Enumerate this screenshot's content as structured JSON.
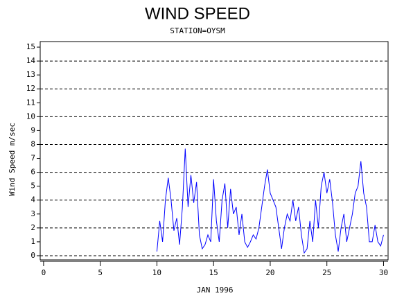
{
  "chart_data": {
    "type": "line",
    "title": "WIND SPEED",
    "subtitle": "STATION=OYSM",
    "y_label": "Wind Speed m/sec",
    "x_label": "JAN 1996",
    "x": [
      10,
      10.25,
      10.5,
      10.75,
      11,
      11.25,
      11.5,
      11.75,
      12,
      12.25,
      12.5,
      12.75,
      13,
      13.25,
      13.5,
      13.75,
      14,
      14.25,
      14.5,
      14.75,
      15,
      15.25,
      15.5,
      15.75,
      16,
      16.25,
      16.5,
      16.75,
      17,
      17.25,
      17.5,
      17.75,
      18,
      18.25,
      18.5,
      18.75,
      19,
      19.25,
      19.5,
      19.75,
      20,
      20.25,
      20.5,
      20.75,
      21,
      21.25,
      21.5,
      21.75,
      22,
      22.25,
      22.5,
      22.75,
      23,
      23.25,
      23.5,
      23.75,
      24,
      24.25,
      24.5,
      24.75,
      25,
      25.25,
      25.5,
      25.75,
      26,
      26.25,
      26.5,
      26.75,
      27,
      27.25,
      27.5,
      27.75,
      28,
      28.25,
      28.5,
      28.75,
      29,
      29.25,
      29.5,
      29.75,
      30
    ],
    "values": [
      0.3,
      2.5,
      1.0,
      4.0,
      5.6,
      4.0,
      1.8,
      2.7,
      0.8,
      3.5,
      7.7,
      3.5,
      5.8,
      3.8,
      5.3,
      1.5,
      0.5,
      0.8,
      1.5,
      1.0,
      5.5,
      2.5,
      1.0,
      4.0,
      5.2,
      2.0,
      4.8,
      3.0,
      3.5,
      1.5,
      3.0,
      1.0,
      0.6,
      1.0,
      1.5,
      1.2,
      2.0,
      3.5,
      5.0,
      6.2,
      4.5,
      4.0,
      3.5,
      2.0,
      0.5,
      2.0,
      3.0,
      2.5,
      4.0,
      2.5,
      3.5,
      1.5,
      0.2,
      0.5,
      2.5,
      1.0,
      4.0,
      2.0,
      5.0,
      6.0,
      4.5,
      5.5,
      3.8,
      1.5,
      0.3,
      2.0,
      3.0,
      1.0,
      2.0,
      3.0,
      4.5,
      5.0,
      6.8,
      4.5,
      3.5,
      1.0,
      1.0,
      2.2,
      1.0,
      0.7,
      1.5
    ],
    "color": "#0000ff",
    "xlim": [
      -0.3,
      30.4
    ],
    "xticks": [
      0,
      5,
      10,
      15,
      20,
      25,
      30
    ],
    "ylim": [
      -0.3,
      15.4
    ],
    "yticks": [
      0,
      1,
      2,
      3,
      4,
      5,
      6,
      7,
      8,
      9,
      10,
      11,
      12,
      13,
      14,
      15
    ],
    "grid_values": [
      0,
      2,
      4,
      6,
      8,
      10,
      12,
      14
    ]
  }
}
